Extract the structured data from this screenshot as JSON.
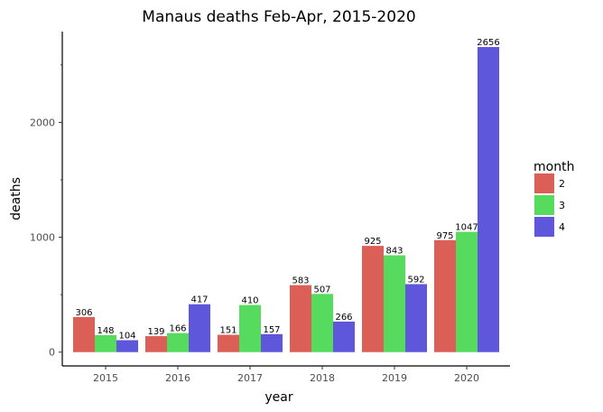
{
  "chart_data": {
    "type": "bar",
    "title": "Manaus deaths Feb-Apr, 2015-2020",
    "xlabel": "year",
    "ylabel": "deaths",
    "categories": [
      "2015",
      "2016",
      "2017",
      "2018",
      "2019",
      "2020"
    ],
    "series": [
      {
        "name": "2",
        "color": "#db5f57",
        "values": [
          306,
          139,
          151,
          583,
          925,
          975
        ]
      },
      {
        "name": "3",
        "color": "#57db5f",
        "values": [
          148,
          166,
          410,
          507,
          843,
          1047
        ]
      },
      {
        "name": "4",
        "color": "#5f57db",
        "values": [
          104,
          417,
          157,
          266,
          592,
          2656
        ]
      }
    ],
    "ylim": [
      -120,
      2790
    ],
    "yticks": [
      0,
      1000,
      2000
    ],
    "y_minor_ticks": [
      500,
      1500,
      2500
    ],
    "legend": {
      "title": "month",
      "placement": "right"
    },
    "grid": false
  }
}
